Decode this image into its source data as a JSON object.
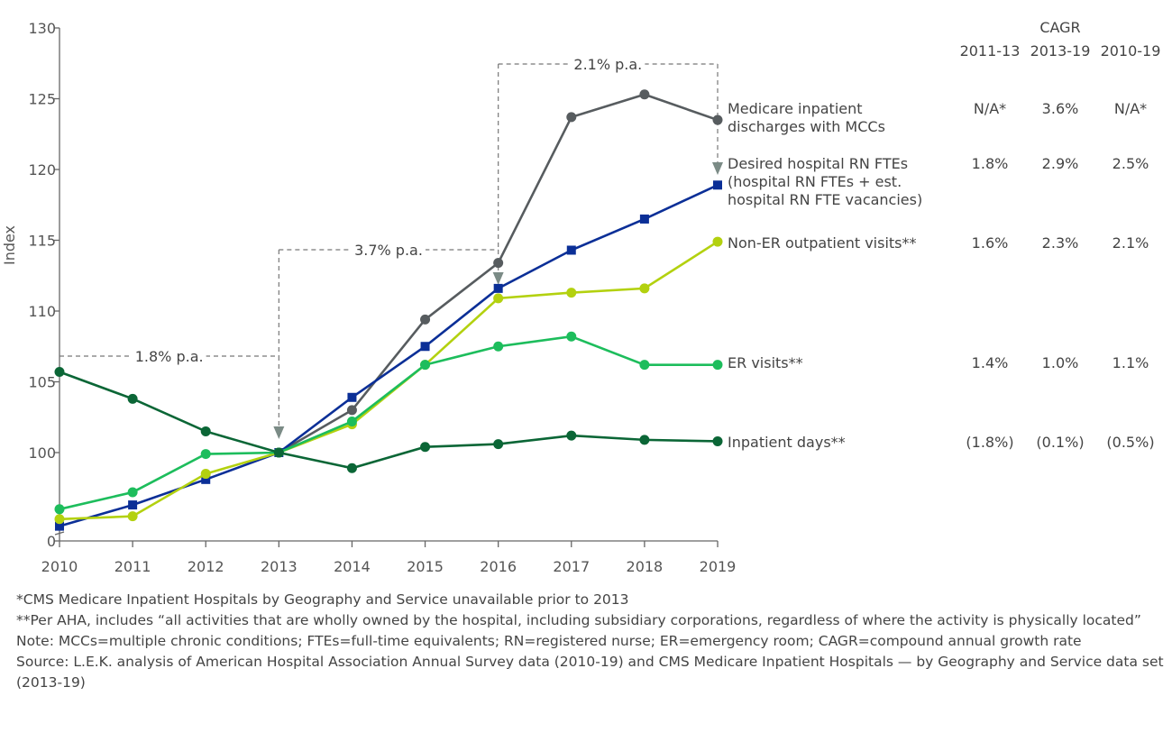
{
  "chart_data": {
    "type": "line",
    "ylabel": "Index",
    "xlabel": "",
    "x": [
      2010,
      2011,
      2012,
      2013,
      2014,
      2015,
      2016,
      2017,
      2018,
      2019
    ],
    "y_ticks": [
      "0",
      "100",
      "105",
      "110",
      "115",
      "120",
      "125",
      "130"
    ],
    "ylim": [
      94,
      130
    ],
    "y_axis_break": true,
    "grid": false,
    "legend": "right, inline labels",
    "series": [
      {
        "name": "Medicare inpatient discharges with MCCs",
        "label_lines": [
          "Medicare inpatient",
          "discharges with MCCs"
        ],
        "color": "#575c5f",
        "marker": "circle",
        "values": [
          null,
          null,
          null,
          100,
          103.0,
          109.4,
          113.4,
          123.7,
          125.3,
          123.5
        ],
        "cagr": [
          "N/A*",
          "3.6%",
          "N/A*"
        ]
      },
      {
        "name": "Desired hospital RN FTEs (hospital RN FTEs + est. hospital RN FTE vacancies)",
        "label_lines": [
          "Desired hospital RN FTEs",
          "(hospital RN FTEs + est.",
          "hospital RN FTE vacancies)"
        ],
        "color": "#0b2f97",
        "marker": "square",
        "values": [
          94.8,
          96.3,
          98.1,
          100,
          103.9,
          107.5,
          111.6,
          114.3,
          116.5,
          118.9
        ],
        "cagr": [
          "1.8%",
          "2.9%",
          "2.5%"
        ]
      },
      {
        "name": "Non-ER outpatient visits**",
        "label_lines": [
          "Non-ER outpatient visits**"
        ],
        "color": "#b3d10f",
        "marker": "circle",
        "values": [
          95.3,
          95.5,
          98.5,
          100,
          102.0,
          106.2,
          110.9,
          111.3,
          111.6,
          114.9
        ],
        "cagr": [
          "1.6%",
          "2.3%",
          "2.1%"
        ]
      },
      {
        "name": "ER visits**",
        "label_lines": [
          "ER visits**"
        ],
        "color": "#1dbd5c",
        "marker": "circle",
        "values": [
          96.0,
          97.2,
          99.9,
          100,
          102.2,
          106.2,
          107.5,
          108.2,
          106.2,
          106.2
        ],
        "cagr": [
          "1.4%",
          "1.0%",
          "1.1%"
        ]
      },
      {
        "name": "Inpatient days**",
        "label_lines": [
          "Inpatient days**"
        ],
        "color": "#0b6636",
        "marker": "circle",
        "values": [
          105.7,
          103.8,
          101.5,
          100,
          98.9,
          100.4,
          100.6,
          101.2,
          100.9,
          100.8
        ],
        "cagr": [
          "(1.8%)",
          "(0.1%)",
          "(0.5%)"
        ]
      }
    ],
    "annotations": [
      {
        "text": "1.8% p.a.",
        "from": 2010,
        "to": 2013
      },
      {
        "text": "3.7% p.a.",
        "from": 2013,
        "to": 2016
      },
      {
        "text": "2.1% p.a.",
        "from": 2016,
        "to": 2019
      }
    ],
    "cagr_table": {
      "title": "CAGR",
      "columns": [
        "2011-13",
        "2013-19",
        "2010-19"
      ]
    }
  },
  "footnotes": [
    "*CMS Medicare Inpatient Hospitals by Geography and Service unavailable prior to 2013",
    "**Per AHA, includes “all activities that are wholly owned by the hospital, including subsidiary corporations, regardless of where the activity is physically located”",
    "Note: MCCs=multiple chronic conditions; FTEs=full-time equivalents; RN=registered nurse; ER=emergency room; CAGR=compound annual growth rate",
    "Source: L.E.K. analysis of American Hospital Association Annual Survey data (2010-19) and CMS Medicare Inpatient Hospitals — by Geography and Service data set (2013-19)"
  ]
}
